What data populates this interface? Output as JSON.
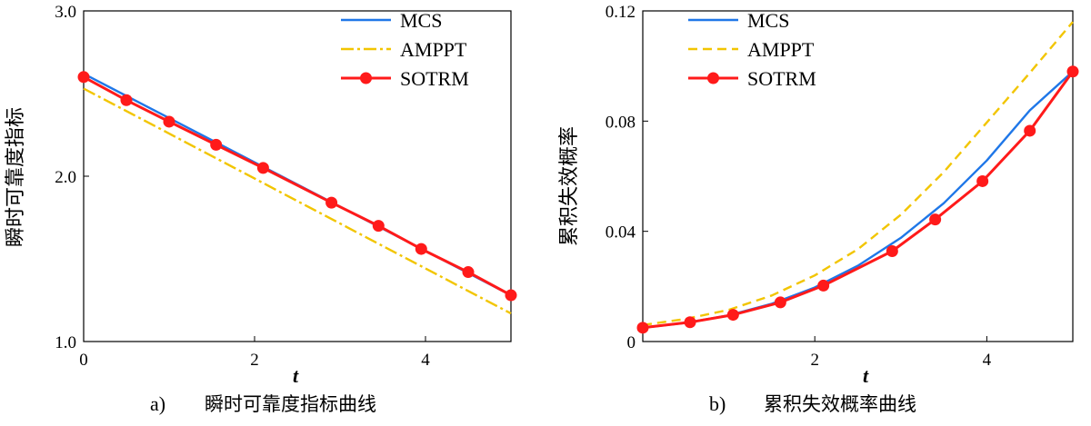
{
  "chart_data": [
    {
      "id": "a",
      "type": "line",
      "caption_id": "a)",
      "caption_text": "瞬时可靠度指标曲线",
      "xlabel": "t",
      "ylabel": "瞬时可靠度指标",
      "xlim": [
        0,
        5
      ],
      "ylim": [
        1.0,
        3.0
      ],
      "xticks": [
        "0",
        "2",
        "4"
      ],
      "yticks": [
        "1.0",
        "2.0",
        "3.0"
      ],
      "legend_position": "top-right",
      "series": [
        {
          "name": "MCS",
          "color": "#1f77e8",
          "style": "solid",
          "x": [
            0,
            5
          ],
          "y": [
            2.62,
            1.28
          ]
        },
        {
          "name": "AMPPT",
          "color": "#f2c500",
          "style": "dashdot",
          "x": [
            0,
            5
          ],
          "y": [
            2.53,
            1.17
          ]
        },
        {
          "name": "SOTRM",
          "color": "#ff1a1a",
          "style": "solid",
          "marker": "circle",
          "x": [
            0,
            0.5,
            1.0,
            1.55,
            2.1,
            2.9,
            3.45,
            3.95,
            4.5,
            5.0
          ],
          "y": [
            2.6,
            2.46,
            2.33,
            2.19,
            2.05,
            1.84,
            1.7,
            1.56,
            1.42,
            1.28
          ]
        }
      ]
    },
    {
      "id": "b",
      "type": "line",
      "caption_id": "b)",
      "caption_text": "累积失效概率曲线",
      "xlabel": "t",
      "ylabel": "累积失效概率",
      "xlim": [
        0,
        5
      ],
      "ylim": [
        0,
        0.12
      ],
      "xticks": [
        "2",
        "4"
      ],
      "yticks": [
        "0",
        "0.04",
        "0.08",
        "0.12"
      ],
      "legend_position": "top-left",
      "series": [
        {
          "name": "MCS",
          "color": "#1f77e8",
          "style": "solid",
          "x": [
            0,
            0.5,
            1.0,
            1.5,
            2.0,
            2.5,
            3.0,
            3.5,
            4.0,
            4.5,
            5.0
          ],
          "y": [
            0.005,
            0.0068,
            0.0095,
            0.0137,
            0.0196,
            0.0275,
            0.0376,
            0.0502,
            0.0657,
            0.0839,
            0.098
          ]
        },
        {
          "name": "AMPPT",
          "color": "#f2c500",
          "style": "dashed",
          "x": [
            0,
            0.5,
            1.0,
            1.5,
            2.0,
            2.5,
            3.0,
            3.5,
            4.0,
            4.5,
            5.0
          ],
          "y": [
            0.006,
            0.0082,
            0.0115,
            0.0167,
            0.024,
            0.0335,
            0.046,
            0.0615,
            0.0795,
            0.0975,
            0.116
          ]
        },
        {
          "name": "SOTRM",
          "color": "#ff1a1a",
          "style": "solid",
          "marker": "circle",
          "x": [
            0,
            0.55,
            1.05,
            1.6,
            2.1,
            2.9,
            3.4,
            3.95,
            4.5,
            5.0
          ],
          "y": [
            0.005,
            0.007,
            0.0097,
            0.0142,
            0.0203,
            0.0328,
            0.0443,
            0.0582,
            0.0765,
            0.098
          ]
        }
      ]
    }
  ]
}
